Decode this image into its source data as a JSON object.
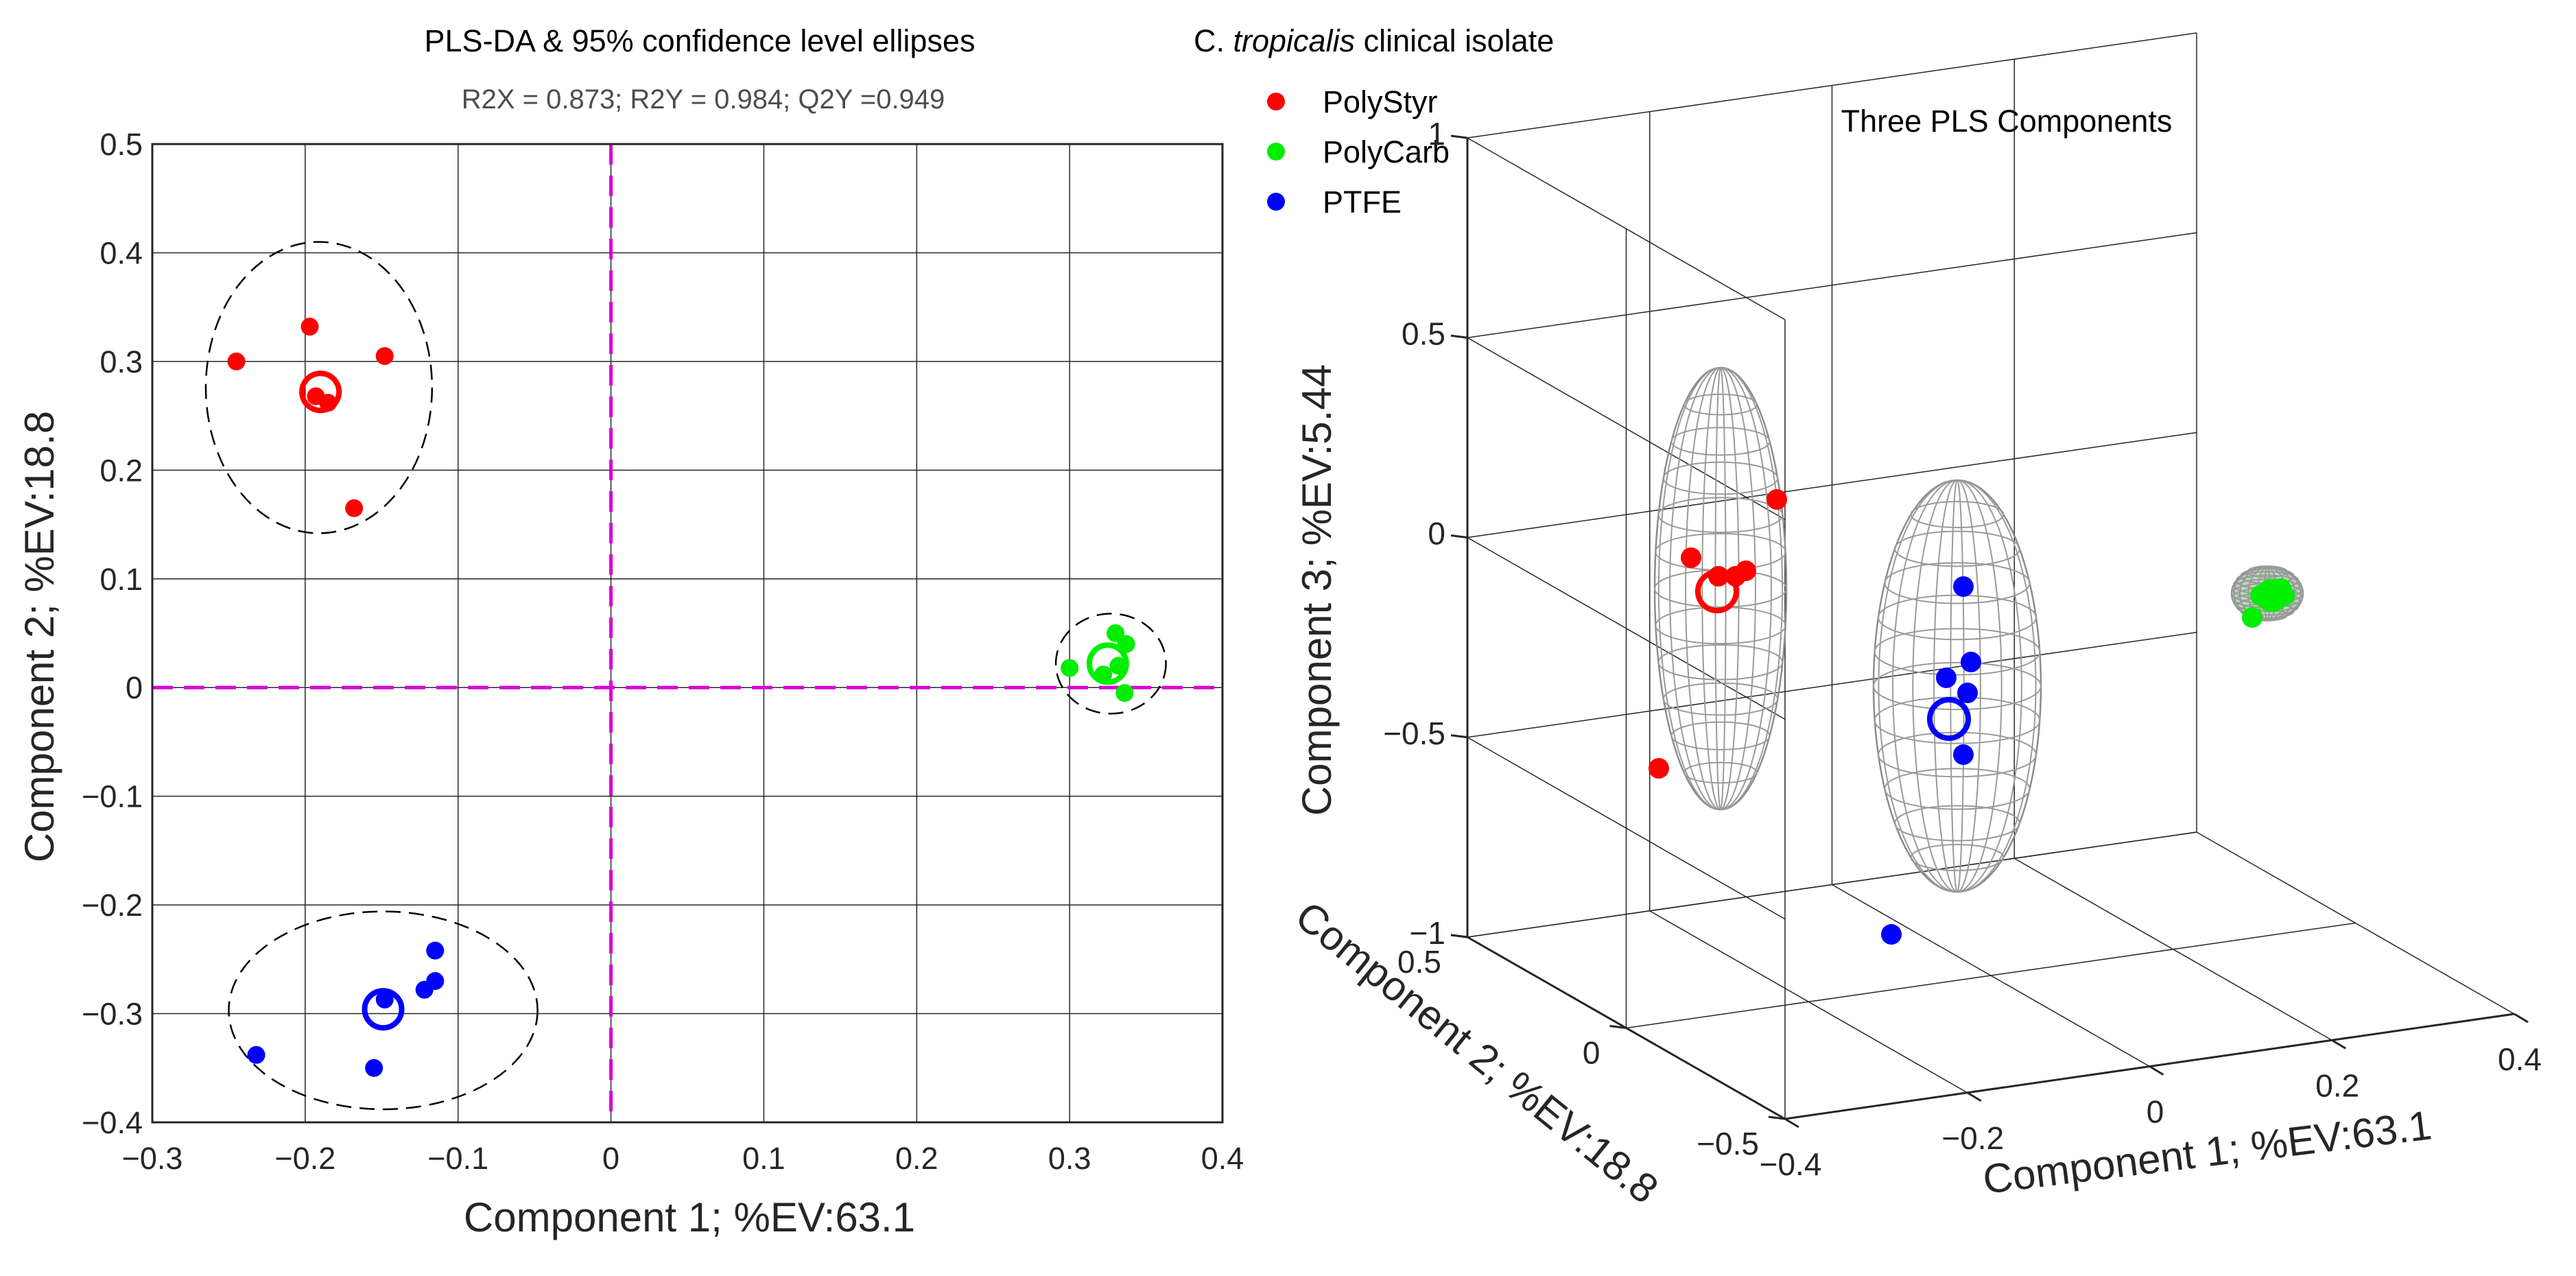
{
  "chart_data": [
    {
      "type": "scatter",
      "title": "PLS-DA & 95% confidence level ellipses",
      "subtitle": "R2X = 0.873; R2Y = 0.984; Q2Y =0.949",
      "xlabel": "Component 1; %EV:63.1",
      "ylabel": "Component 2; %EV:18.8",
      "xlim": [
        -0.3,
        0.4
      ],
      "ylim": [
        -0.4,
        0.5
      ],
      "xticks": [
        "−0.3",
        "−0.2",
        "−0.1",
        "0",
        "0.1",
        "0.2",
        "0.3",
        "0.4"
      ],
      "yticks": [
        "0.5",
        "0.4",
        "0.3",
        "0.2",
        "0.1",
        "0",
        "−0.1",
        "−0.2",
        "−0.3",
        "−0.4"
      ],
      "grid": true,
      "reference_lines": {
        "x": 0,
        "y": 0,
        "color": "#d900d9",
        "style": "dashed"
      },
      "series": [
        {
          "name": "PolyStyr",
          "color": "#ff0000",
          "points": [
            [
              -0.245,
              0.3
            ],
            [
              -0.197,
              0.332
            ],
            [
              -0.148,
              0.305
            ],
            [
              -0.185,
              0.262
            ],
            [
              -0.193,
              0.268
            ],
            [
              -0.168,
              0.165
            ]
          ],
          "centroid": [
            -0.19,
            0.272
          ],
          "ellipse": {
            "center": [
              -0.191,
              0.276
            ],
            "semi_x": 0.074,
            "semi_y": 0.134
          }
        },
        {
          "name": "PolyCarb",
          "color": "#00ee00",
          "points": [
            [
              0.3,
              0.018
            ],
            [
              0.33,
              0.05
            ],
            [
              0.337,
              0.04
            ],
            [
              0.322,
              0.012
            ],
            [
              0.332,
              0.02
            ],
            [
              0.336,
              -0.005
            ]
          ],
          "centroid": [
            0.325,
            0.022
          ],
          "ellipse": {
            "center": [
              0.327,
              0.022
            ],
            "semi_x": 0.036,
            "semi_y": 0.046
          }
        },
        {
          "name": "PTFE",
          "color": "#0000ff",
          "points": [
            [
              -0.232,
              -0.338
            ],
            [
              -0.155,
              -0.35
            ],
            [
              -0.115,
              -0.242
            ],
            [
              -0.115,
              -0.27
            ],
            [
              -0.122,
              -0.278
            ],
            [
              -0.148,
              -0.287
            ]
          ],
          "centroid": [
            -0.149,
            -0.296
          ],
          "ellipse": {
            "center": [
              -0.149,
              -0.297
            ],
            "semi_x": 0.101,
            "semi_y": 0.091
          }
        }
      ]
    },
    {
      "type": "scatter3d",
      "title": "Three PLS Components",
      "xlabel": "Component 1; %EV:63.1",
      "ylabel": "Component 2; %EV:18.8",
      "zlabel": "Component 3; %EV:5.44",
      "xlim": [
        -0.4,
        0.4
      ],
      "ylim": [
        -0.5,
        0.5
      ],
      "zlim": [
        -1,
        1
      ],
      "xticks": [
        "−0.4",
        "−0.2",
        "0",
        "0.2",
        "0.4"
      ],
      "yticks": [
        "0.5",
        "0",
        "−0.5"
      ],
      "zticks": [
        "1",
        "0.5",
        "0",
        "−0.5",
        "−1"
      ]
    }
  ],
  "legend": {
    "title_prefix": "C.",
    "title_italic": "tropicalis",
    "title_suffix": "clinical isolate",
    "entries": [
      {
        "label": "PolyStyr",
        "color": "#ff0000"
      },
      {
        "label": "PolyCarb",
        "color": "#00ee00"
      },
      {
        "label": "PTFE",
        "color": "#0000ff"
      }
    ]
  }
}
